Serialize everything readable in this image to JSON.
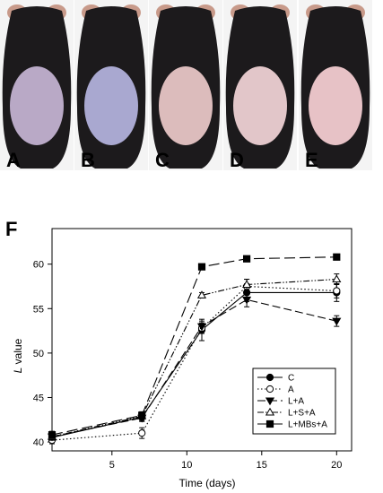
{
  "photos": {
    "labels": [
      "A",
      "B",
      "C",
      "D",
      "E"
    ],
    "fur_color": "#1c1a1c",
    "ear_color": "#c89a8a",
    "wound_colors": [
      "#b9a9c6",
      "#a9a8d0",
      "#dcbcbc",
      "#e2c6c9",
      "#e7c2c6"
    ]
  },
  "chart_data": {
    "type": "line",
    "panel_label": "F",
    "xlabel": "Time (days)",
    "ylabel_italic": "L",
    "ylabel_rest": " value",
    "xlim": [
      1,
      21
    ],
    "ylim": [
      39,
      64
    ],
    "xticks": [
      5,
      10,
      15,
      20
    ],
    "yticks": [
      40,
      45,
      50,
      55,
      60
    ],
    "x": [
      1,
      7,
      11,
      14,
      20
    ],
    "series": [
      {
        "name": "C",
        "values": [
          40.5,
          42.8,
          52.6,
          56.8,
          56.8
        ],
        "errors": [
          0.4,
          0.4,
          1.2,
          1.0,
          1.0
        ],
        "marker": "circle-filled",
        "dash": ""
      },
      {
        "name": "A",
        "values": [
          40.2,
          41.0,
          52.8,
          57.5,
          57.0
        ],
        "errors": [
          0.4,
          0.6,
          0.6,
          0.8,
          0.8
        ],
        "marker": "circle-open",
        "dash": "1.5 2.5"
      },
      {
        "name": "L+A",
        "values": [
          40.6,
          42.7,
          53.0,
          56.0,
          53.6
        ],
        "errors": [
          0.4,
          0.4,
          0.6,
          0.8,
          0.6
        ],
        "marker": "triangle-down-filled",
        "dash": "9 4"
      },
      {
        "name": "L+S+A",
        "values": [
          40.6,
          42.9,
          56.5,
          57.7,
          58.3
        ],
        "errors": [
          0.4,
          0.4,
          0.3,
          0.6,
          0.6
        ],
        "marker": "triangle-up-open",
        "dash": "7 2 1.5 2 1.5 2"
      },
      {
        "name": "L+MBs+A",
        "values": [
          40.8,
          43.0,
          59.7,
          60.6,
          60.8
        ],
        "errors": [
          0.4,
          0.4,
          0.2,
          0.2,
          0.2
        ],
        "marker": "square-filled",
        "dash": "12 5"
      }
    ],
    "legend_position": "lower-right",
    "grid": false
  }
}
